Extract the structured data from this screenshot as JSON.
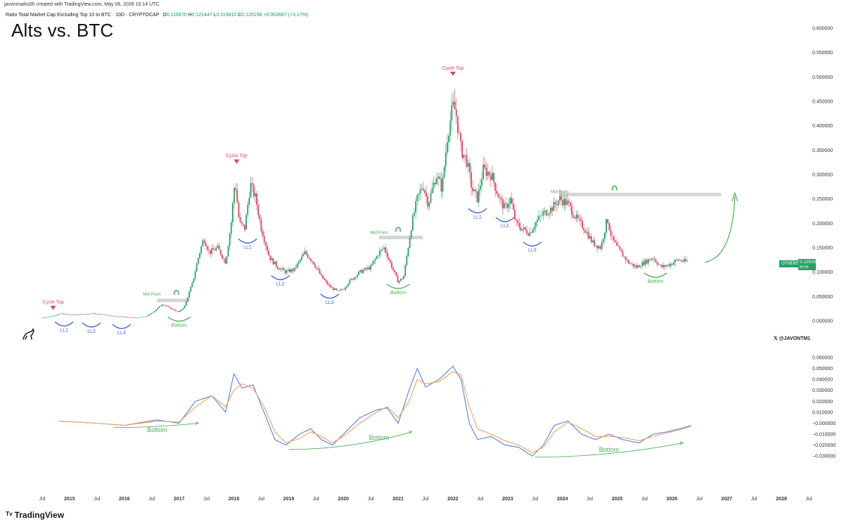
{
  "header": {
    "credit": "javonmarks00 created with TradingView.com, May 06, 2026 16:14 UTC",
    "symbol": "Ratio Total Market Cap Excluding Top 10 to BTC · 10D · CRYPTOCAP",
    "ohlc": {
      "o_label": "O",
      "o": "0.116670",
      "h_label": "H",
      "h": "0.121447",
      "l_label": "L",
      "l": "0.113810",
      "c_label": "C",
      "c": "0.120158",
      "change": "+0.003687 (+3.17%)"
    },
    "title": "Alts vs. BTC"
  },
  "price_tag": {
    "symbol": "OTHERSBTC",
    "value": "0.120158",
    "countdown": "8d 8h"
  },
  "handle": "@JAVONTM1",
  "branding": "TradingView",
  "colors": {
    "up": "#26a269",
    "down": "#e0435b",
    "macd": "#5b7fe0",
    "signal": "#f5a25a",
    "annot_red": "#e0435b",
    "annot_green": "#4caf50",
    "annot_blue": "#3b5fcf",
    "level": "#d0d0d0"
  },
  "chart_data": [
    {
      "type": "candlestick",
      "title": "Alts vs. BTC",
      "y_range": [
        0,
        0.6
      ],
      "y_ticks": [
        "0.600000",
        "0.550000",
        "0.500000",
        "0.450000",
        "0.400000",
        "0.350000",
        "0.300000",
        "0.250000",
        "0.200000",
        "0.150000",
        "0.100000",
        "0.050000",
        "0.000000"
      ],
      "x_range": [
        2014.5,
        2028.0
      ],
      "x_ticks": [
        {
          "t": 2014.5,
          "label": "Jul"
        },
        {
          "t": 2015.0,
          "label": "2015"
        },
        {
          "t": 2015.5,
          "label": "Jul"
        },
        {
          "t": 2016.0,
          "label": "2016"
        },
        {
          "t": 2016.5,
          "label": "Jul"
        },
        {
          "t": 2017.0,
          "label": "2017"
        },
        {
          "t": 2017.5,
          "label": "Jul"
        },
        {
          "t": 2018.0,
          "label": "2018"
        },
        {
          "t": 2018.5,
          "label": "Jul"
        },
        {
          "t": 2019.0,
          "label": "2019"
        },
        {
          "t": 2019.5,
          "label": "Jul"
        },
        {
          "t": 2020.0,
          "label": "2020"
        },
        {
          "t": 2020.5,
          "label": "Jul"
        },
        {
          "t": 2021.0,
          "label": "2021"
        },
        {
          "t": 2021.5,
          "label": "Jul"
        },
        {
          "t": 2022.0,
          "label": "2022"
        },
        {
          "t": 2022.5,
          "label": "Jul"
        },
        {
          "t": 2023.0,
          "label": "2023"
        },
        {
          "t": 2023.5,
          "label": "Jul"
        },
        {
          "t": 2024.0,
          "label": "2024"
        },
        {
          "t": 2024.5,
          "label": "Jul"
        },
        {
          "t": 2025.0,
          "label": "2025"
        },
        {
          "t": 2025.5,
          "label": "Jul"
        },
        {
          "t": 2026.0,
          "label": "2026"
        },
        {
          "t": 2026.5,
          "label": "Jul"
        },
        {
          "t": 2027.0,
          "label": "2027"
        },
        {
          "t": 2027.5,
          "label": "Jul"
        },
        {
          "t": 2028.0,
          "label": "2028"
        },
        {
          "t": 2028.5,
          "label": "Jul"
        }
      ],
      "series_close": [
        [
          2014.5,
          0.006
        ],
        [
          2014.7,
          0.01
        ],
        [
          2014.85,
          0.015
        ],
        [
          2015.0,
          0.012
        ],
        [
          2015.2,
          0.013
        ],
        [
          2015.4,
          0.015
        ],
        [
          2015.6,
          0.013
        ],
        [
          2015.8,
          0.01
        ],
        [
          2016.0,
          0.008
        ],
        [
          2016.2,
          0.006
        ],
        [
          2016.4,
          0.009
        ],
        [
          2016.55,
          0.02
        ],
        [
          2016.7,
          0.035
        ],
        [
          2016.85,
          0.025
        ],
        [
          2017.0,
          0.018
        ],
        [
          2017.1,
          0.03
        ],
        [
          2017.25,
          0.08
        ],
        [
          2017.35,
          0.13
        ],
        [
          2017.45,
          0.17
        ],
        [
          2017.55,
          0.14
        ],
        [
          2017.7,
          0.15
        ],
        [
          2017.85,
          0.12
        ],
        [
          2017.95,
          0.2
        ],
        [
          2018.02,
          0.29
        ],
        [
          2018.1,
          0.2
        ],
        [
          2018.2,
          0.19
        ],
        [
          2018.3,
          0.28
        ],
        [
          2018.4,
          0.25
        ],
        [
          2018.5,
          0.19
        ],
        [
          2018.65,
          0.13
        ],
        [
          2018.8,
          0.11
        ],
        [
          2018.95,
          0.1
        ],
        [
          2019.1,
          0.105
        ],
        [
          2019.3,
          0.14
        ],
        [
          2019.45,
          0.12
        ],
        [
          2019.6,
          0.09
        ],
        [
          2019.75,
          0.07
        ],
        [
          2019.9,
          0.06
        ],
        [
          2020.0,
          0.065
        ],
        [
          2020.1,
          0.08
        ],
        [
          2020.3,
          0.1
        ],
        [
          2020.5,
          0.11
        ],
        [
          2020.65,
          0.14
        ],
        [
          2020.75,
          0.15
        ],
        [
          2020.85,
          0.12
        ],
        [
          2021.0,
          0.08
        ],
        [
          2021.1,
          0.09
        ],
        [
          2021.25,
          0.2
        ],
        [
          2021.35,
          0.25
        ],
        [
          2021.45,
          0.28
        ],
        [
          2021.55,
          0.24
        ],
        [
          2021.7,
          0.3
        ],
        [
          2021.8,
          0.27
        ],
        [
          2021.9,
          0.38
        ],
        [
          2022.0,
          0.44
        ],
        [
          2022.05,
          0.43
        ],
        [
          2022.15,
          0.35
        ],
        [
          2022.25,
          0.33
        ],
        [
          2022.35,
          0.27
        ],
        [
          2022.45,
          0.25
        ],
        [
          2022.55,
          0.31
        ],
        [
          2022.7,
          0.3
        ],
        [
          2022.85,
          0.25
        ],
        [
          2022.95,
          0.23
        ],
        [
          2023.05,
          0.25
        ],
        [
          2023.15,
          0.2
        ],
        [
          2023.25,
          0.19
        ],
        [
          2023.4,
          0.18
        ],
        [
          2023.5,
          0.2
        ],
        [
          2023.65,
          0.22
        ],
        [
          2023.8,
          0.23
        ],
        [
          2023.95,
          0.25
        ],
        [
          2024.1,
          0.24
        ],
        [
          2024.25,
          0.21
        ],
        [
          2024.4,
          0.19
        ],
        [
          2024.55,
          0.16
        ],
        [
          2024.7,
          0.15
        ],
        [
          2024.82,
          0.21
        ],
        [
          2024.9,
          0.17
        ],
        [
          2025.0,
          0.15
        ],
        [
          2025.2,
          0.12
        ],
        [
          2025.35,
          0.11
        ],
        [
          2025.5,
          0.12
        ],
        [
          2025.65,
          0.13
        ],
        [
          2025.8,
          0.11
        ],
        [
          2025.95,
          0.115
        ],
        [
          2026.1,
          0.125
        ],
        [
          2026.3,
          0.12
        ]
      ],
      "annotations": [
        {
          "label": "Cycle Top",
          "t": 2014.7,
          "v": 0.025,
          "color": "red",
          "marker": "triangle-down"
        },
        {
          "label": "Cycle Top",
          "t": 2018.05,
          "v": 0.325,
          "color": "red",
          "marker": "triangle-down"
        },
        {
          "label": "Cycle Top",
          "t": 2022.0,
          "v": 0.505,
          "color": "red",
          "marker": "triangle-down"
        },
        {
          "label": "LL1",
          "t": 2014.9,
          "v": -0.002,
          "color": "blue",
          "arc": "blue"
        },
        {
          "label": "LL2",
          "t": 2015.4,
          "v": -0.004,
          "color": "blue",
          "arc": "blue"
        },
        {
          "label": "LL3",
          "t": 2015.95,
          "v": -0.007,
          "color": "blue",
          "arc": "blue"
        },
        {
          "label": "LL1",
          "t": 2018.25,
          "v": 0.168,
          "color": "blue",
          "arc": "blue"
        },
        {
          "label": "LL2",
          "t": 2018.85,
          "v": 0.093,
          "color": "blue",
          "arc": "blue"
        },
        {
          "label": "LL3",
          "t": 2019.75,
          "v": 0.055,
          "color": "blue",
          "arc": "blue"
        },
        {
          "label": "LL1",
          "t": 2022.45,
          "v": 0.23,
          "color": "blue",
          "arc": "blue"
        },
        {
          "label": "LL2",
          "t": 2022.95,
          "v": 0.212,
          "color": "blue",
          "arc": "blue"
        },
        {
          "label": "LL3",
          "t": 2023.45,
          "v": 0.162,
          "color": "blue",
          "arc": "blue"
        },
        {
          "label": "Bottom",
          "t": 2017.0,
          "v": 0.008,
          "color": "green",
          "arc": "green"
        },
        {
          "label": "Bottom",
          "t": 2021.0,
          "v": 0.075,
          "color": "green",
          "arc": "green"
        },
        {
          "label": "Bottom",
          "t": 2025.7,
          "v": 0.098,
          "color": "green",
          "arc": "green"
        },
        {
          "label": "Mid Point",
          "t": 2016.5,
          "v": 0.052,
          "color": "green"
        },
        {
          "label": "Mid Point",
          "t": 2020.65,
          "v": 0.178,
          "color": "green"
        },
        {
          "label": "Mid Point",
          "t": 2023.95,
          "v": 0.262,
          "color": "green"
        }
      ],
      "levels": [
        {
          "t_start": 2016.6,
          "t_end": 2017.2,
          "v": 0.042
        },
        {
          "t_start": 2020.65,
          "t_end": 2021.45,
          "v": 0.171
        },
        {
          "t_start": 2023.95,
          "t_end": 2026.9,
          "v": 0.259
        }
      ]
    },
    {
      "type": "line",
      "y_range": [
        -0.035,
        0.06
      ],
      "y_ticks": [
        "0.060000",
        "0.050000",
        "0.040000",
        "0.030000",
        "0.020000",
        "0.010000",
        "−0.000000",
        "−0.010000",
        "−0.020000",
        "−0.030000"
      ],
      "series": [
        {
          "name": "",
          "color": "#5b7fe0",
          "points": [
            [
              2014.8,
              0.002
            ],
            [
              2015.5,
              0.0
            ],
            [
              2016.0,
              -0.002
            ],
            [
              2016.6,
              0.003
            ],
            [
              2017.0,
              0.0
            ],
            [
              2017.3,
              0.02
            ],
            [
              2017.6,
              0.025
            ],
            [
              2017.85,
              0.01
            ],
            [
              2018.0,
              0.045
            ],
            [
              2018.15,
              0.032
            ],
            [
              2018.35,
              0.035
            ],
            [
              2018.55,
              0.01
            ],
            [
              2018.75,
              -0.015
            ],
            [
              2018.95,
              -0.02
            ],
            [
              2019.2,
              -0.01
            ],
            [
              2019.4,
              -0.005
            ],
            [
              2019.6,
              -0.015
            ],
            [
              2019.8,
              -0.02
            ],
            [
              2020.0,
              -0.01
            ],
            [
              2020.3,
              0.005
            ],
            [
              2020.6,
              0.012
            ],
            [
              2020.8,
              0.014
            ],
            [
              2021.0,
              0.0
            ],
            [
              2021.2,
              0.03
            ],
            [
              2021.35,
              0.05
            ],
            [
              2021.5,
              0.033
            ],
            [
              2021.75,
              0.04
            ],
            [
              2022.0,
              0.052
            ],
            [
              2022.15,
              0.04
            ],
            [
              2022.3,
              0.0
            ],
            [
              2022.45,
              -0.015
            ],
            [
              2022.7,
              -0.012
            ],
            [
              2022.95,
              -0.02
            ],
            [
              2023.2,
              -0.022
            ],
            [
              2023.45,
              -0.03
            ],
            [
              2023.65,
              -0.02
            ],
            [
              2023.85,
              -0.002
            ],
            [
              2024.1,
              0.002
            ],
            [
              2024.35,
              -0.01
            ],
            [
              2024.6,
              -0.015
            ],
            [
              2024.85,
              -0.01
            ],
            [
              2025.1,
              -0.015
            ],
            [
              2025.4,
              -0.018
            ],
            [
              2025.65,
              -0.01
            ],
            [
              2025.9,
              -0.008
            ],
            [
              2026.15,
              -0.005
            ],
            [
              2026.35,
              -0.002
            ]
          ]
        },
        {
          "name": "",
          "color": "#f5a25a",
          "points": [
            [
              2014.8,
              0.002
            ],
            [
              2015.5,
              0.0
            ],
            [
              2016.0,
              -0.002
            ],
            [
              2016.6,
              0.002
            ],
            [
              2017.0,
              0.001
            ],
            [
              2017.3,
              0.015
            ],
            [
              2017.6,
              0.025
            ],
            [
              2017.85,
              0.015
            ],
            [
              2018.0,
              0.03
            ],
            [
              2018.15,
              0.036
            ],
            [
              2018.35,
              0.032
            ],
            [
              2018.55,
              0.015
            ],
            [
              2018.75,
              -0.008
            ],
            [
              2018.95,
              -0.018
            ],
            [
              2019.2,
              -0.014
            ],
            [
              2019.4,
              -0.008
            ],
            [
              2019.6,
              -0.012
            ],
            [
              2019.8,
              -0.018
            ],
            [
              2020.0,
              -0.012
            ],
            [
              2020.3,
              0.0
            ],
            [
              2020.6,
              0.01
            ],
            [
              2020.8,
              0.015
            ],
            [
              2021.0,
              0.005
            ],
            [
              2021.2,
              0.02
            ],
            [
              2021.35,
              0.04
            ],
            [
              2021.5,
              0.036
            ],
            [
              2021.75,
              0.038
            ],
            [
              2022.0,
              0.047
            ],
            [
              2022.15,
              0.044
            ],
            [
              2022.3,
              0.015
            ],
            [
              2022.45,
              -0.005
            ],
            [
              2022.7,
              -0.01
            ],
            [
              2022.95,
              -0.016
            ],
            [
              2023.2,
              -0.02
            ],
            [
              2023.45,
              -0.027
            ],
            [
              2023.65,
              -0.022
            ],
            [
              2023.85,
              -0.008
            ],
            [
              2024.1,
              0.001
            ],
            [
              2024.35,
              -0.005
            ],
            [
              2024.6,
              -0.012
            ],
            [
              2024.85,
              -0.012
            ],
            [
              2025.1,
              -0.013
            ],
            [
              2025.4,
              -0.016
            ],
            [
              2025.65,
              -0.012
            ],
            [
              2025.9,
              -0.009
            ],
            [
              2026.15,
              -0.006
            ],
            [
              2026.35,
              -0.003
            ]
          ]
        }
      ],
      "annotations": [
        {
          "label": "Bottom",
          "t": 2016.6,
          "v": -0.008
        },
        {
          "label": "Bottom",
          "t": 2020.65,
          "v": -0.015
        },
        {
          "label": "Bottom",
          "t": 2024.85,
          "v": -0.026
        }
      ]
    }
  ]
}
